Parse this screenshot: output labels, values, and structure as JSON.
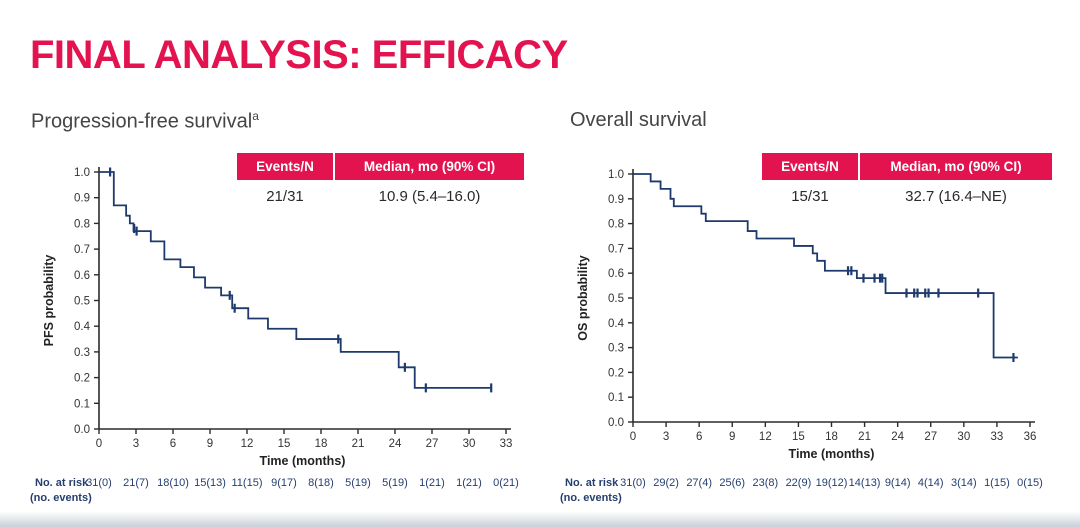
{
  "title": "FINAL ANALYSIS: EFFICACY",
  "colors": {
    "accent_pink": "#e31350",
    "curve_navy": "#1e3a6d",
    "axis_color": "#2b2b2b",
    "risk_text_navy": "#243f6e",
    "tick_label_color": "#333333"
  },
  "panels": [
    {
      "subtitle": "Progression-free survival",
      "subtitle_sup": "a"
    },
    {
      "subtitle": "Overall survival"
    }
  ],
  "chart_data": [
    {
      "type": "line",
      "subtype": "kaplan-meier-step",
      "name": "Progression-free survival",
      "xlabel": "Time (months)",
      "ylabel": "PFS probability",
      "xlim": [
        0,
        33
      ],
      "ylim": [
        0.0,
        1.0
      ],
      "grid": false,
      "legend": "none",
      "xticks": [
        0,
        3,
        6,
        9,
        12,
        15,
        18,
        21,
        24,
        27,
        30,
        33
      ],
      "yticks": [
        "0.0",
        "0.1",
        "0.2",
        "0.3",
        "0.4",
        "0.5",
        "0.6",
        "0.7",
        "0.8",
        "0.9",
        "1.0"
      ],
      "table": {
        "header_events": "Events/N",
        "header_median": "Median, mo (90% CI)",
        "events_n": "21/31",
        "median_mo_90ci": "10.9 (5.4–16.0)"
      },
      "steps": [
        [
          0,
          1.0
        ],
        [
          1.2,
          0.87
        ],
        [
          2.2,
          0.83
        ],
        [
          2.5,
          0.8
        ],
        [
          2.8,
          0.77
        ],
        [
          4.2,
          0.73
        ],
        [
          5.3,
          0.66
        ],
        [
          6.6,
          0.63
        ],
        [
          7.7,
          0.59
        ],
        [
          8.6,
          0.55
        ],
        [
          9.9,
          0.52
        ],
        [
          10.8,
          0.47
        ],
        [
          12.1,
          0.43
        ],
        [
          13.7,
          0.39
        ],
        [
          16.0,
          0.35
        ],
        [
          19.6,
          0.3
        ],
        [
          24.3,
          0.24
        ],
        [
          25.6,
          0.16
        ]
      ],
      "curve_end_time": 31.8,
      "censor_marks": [
        [
          0.9,
          1.0
        ],
        [
          2.85,
          0.78
        ],
        [
          3.05,
          0.77
        ],
        [
          10.6,
          0.52
        ],
        [
          11.0,
          0.47
        ],
        [
          19.4,
          0.35
        ],
        [
          24.8,
          0.24
        ],
        [
          26.5,
          0.16
        ],
        [
          31.8,
          0.16
        ]
      ],
      "risk_row_label": [
        "No. at risk",
        "(no. events)"
      ],
      "risk_values": [
        "31(0)",
        "21(7)",
        "18(10)",
        "15(13)",
        "11(15)",
        "9(17)",
        "8(18)",
        "5(19)",
        "5(19)",
        "1(21)",
        "1(21)",
        "0(21)"
      ]
    },
    {
      "type": "line",
      "subtype": "kaplan-meier-step",
      "name": "Overall survival",
      "xlabel": "Time (months)",
      "ylabel": "OS probability",
      "xlim": [
        0,
        36
      ],
      "ylim": [
        0.0,
        1.0
      ],
      "grid": false,
      "legend": "none",
      "xticks": [
        0,
        3,
        6,
        9,
        12,
        15,
        18,
        21,
        24,
        27,
        30,
        33,
        36
      ],
      "yticks": [
        "0.0",
        "0.1",
        "0.2",
        "0.3",
        "0.4",
        "0.5",
        "0.6",
        "0.7",
        "0.8",
        "0.9",
        "1.0"
      ],
      "table": {
        "header_events": "Events/N",
        "header_median": "Median, mo (90% CI)",
        "events_n": "15/31",
        "median_mo_90ci": "32.7 (16.4–NE)"
      },
      "steps": [
        [
          0,
          1.0
        ],
        [
          1.6,
          0.97
        ],
        [
          2.5,
          0.94
        ],
        [
          3.4,
          0.9
        ],
        [
          3.7,
          0.87
        ],
        [
          6.2,
          0.84
        ],
        [
          6.6,
          0.81
        ],
        [
          10.4,
          0.77
        ],
        [
          11.2,
          0.74
        ],
        [
          14.6,
          0.71
        ],
        [
          16.3,
          0.68
        ],
        [
          16.7,
          0.65
        ],
        [
          17.4,
          0.61
        ],
        [
          20.3,
          0.58
        ],
        [
          22.9,
          0.52
        ],
        [
          32.7,
          0.26
        ]
      ],
      "curve_end_time": 34.9,
      "censor_marks": [
        [
          19.5,
          0.61
        ],
        [
          19.8,
          0.61
        ],
        [
          20.9,
          0.58
        ],
        [
          21.9,
          0.58
        ],
        [
          22.4,
          0.58
        ],
        [
          22.6,
          0.58
        ],
        [
          24.8,
          0.52
        ],
        [
          25.5,
          0.52
        ],
        [
          25.8,
          0.52
        ],
        [
          26.5,
          0.52
        ],
        [
          26.8,
          0.52
        ],
        [
          27.7,
          0.52
        ],
        [
          31.3,
          0.52
        ],
        [
          34.5,
          0.26
        ]
      ],
      "risk_row_label": [
        "No. at risk",
        "(no. events)"
      ],
      "risk_values": [
        "31(0)",
        "29(2)",
        "27(4)",
        "25(6)",
        "23(8)",
        "22(9)",
        "19(12)",
        "14(13)",
        "9(14)",
        "4(14)",
        "3(14)",
        "1(15)",
        "0(15)"
      ]
    }
  ]
}
